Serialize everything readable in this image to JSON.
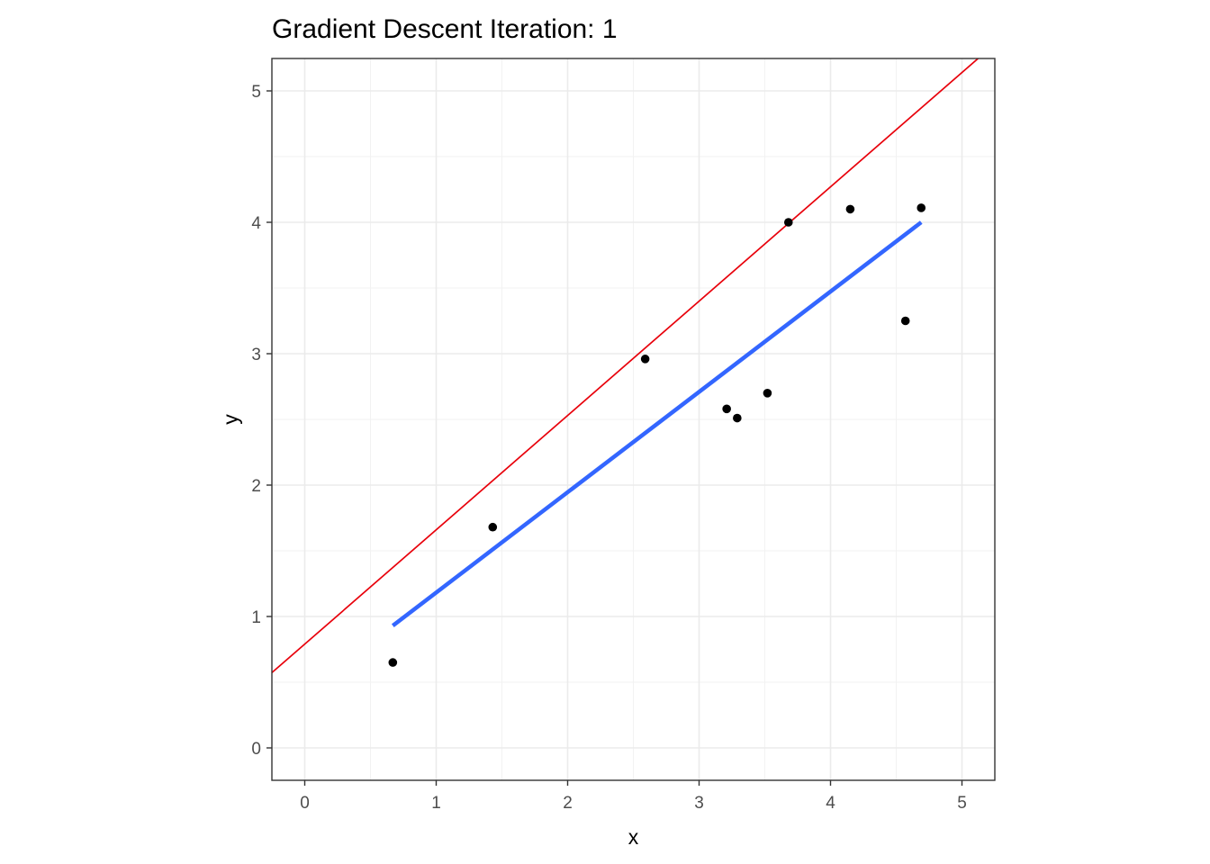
{
  "chart_data": {
    "type": "scatter",
    "title": "Gradient Descent Iteration: 1",
    "xlabel": "x",
    "ylabel": "y",
    "xlim": [
      -0.25,
      5.25
    ],
    "ylim": [
      -0.25,
      5.25
    ],
    "x_ticks": [
      0,
      1,
      2,
      3,
      4,
      5
    ],
    "y_ticks": [
      0,
      1,
      2,
      3,
      4,
      5
    ],
    "x_tick_labels": [
      "0",
      "1",
      "2",
      "3",
      "4",
      "5"
    ],
    "y_tick_labels": [
      "0",
      "1",
      "2",
      "3",
      "4",
      "5"
    ],
    "grid": true,
    "legend": "none",
    "points": {
      "x": [
        0.67,
        1.43,
        2.59,
        3.21,
        3.29,
        3.52,
        3.68,
        4.15,
        4.57,
        4.69
      ],
      "y": [
        0.65,
        1.68,
        2.96,
        2.58,
        2.51,
        2.7,
        4.0,
        4.1,
        3.25,
        4.11
      ],
      "color": "#000000"
    },
    "fit_line": {
      "x": [
        0.67,
        4.69
      ],
      "y": [
        0.93,
        4.0
      ],
      "color": "#3366FF"
    },
    "gradient_line": {
      "intercept": 0.79,
      "slope": 0.87,
      "color": "#E8000B"
    }
  }
}
